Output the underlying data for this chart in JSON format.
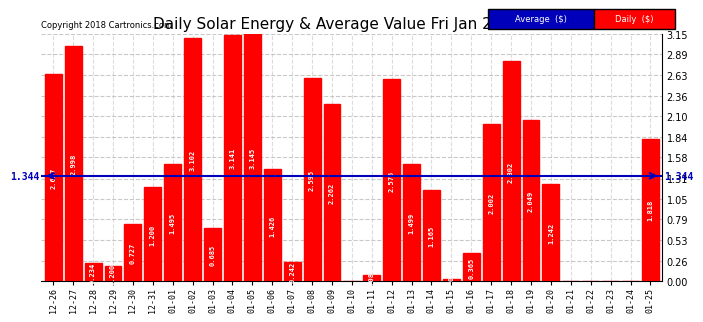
{
  "title": "Daily Solar Energy & Average Value Fri Jan 26 16:50",
  "copyright": "Copyright 2018 Cartronics.com",
  "categories": [
    "12-26",
    "12-27",
    "12-28",
    "12-29",
    "12-30",
    "12-31",
    "01-01",
    "01-02",
    "01-03",
    "01-04",
    "01-05",
    "01-06",
    "01-07",
    "01-08",
    "01-09",
    "01-10",
    "01-11",
    "01-12",
    "01-13",
    "01-14",
    "01-15",
    "01-16",
    "01-17",
    "01-18",
    "01-19",
    "01-20",
    "01-21",
    "01-22",
    "01-23",
    "01-24",
    "01-25"
  ],
  "values": [
    2.637,
    2.998,
    0.234,
    0.2,
    0.727,
    1.2,
    1.495,
    3.102,
    0.685,
    3.141,
    3.145,
    1.426,
    0.242,
    2.595,
    2.262,
    0.0,
    0.088,
    2.575,
    1.499,
    1.165,
    0.03,
    0.365,
    2.002,
    2.802,
    2.049,
    1.242,
    0.0,
    0.0,
    0.0,
    0.0,
    1.818
  ],
  "average_line": 1.344,
  "average_label": "1.344",
  "bar_color": "#FF0000",
  "average_color": "#0000BB",
  "ylim": [
    0.0,
    3.15
  ],
  "yticks": [
    0.0,
    0.26,
    0.53,
    0.79,
    1.05,
    1.31,
    1.58,
    1.84,
    2.1,
    2.36,
    2.63,
    2.89,
    3.15
  ],
  "title_fontsize": 11,
  "value_label_fontsize": 5,
  "legend_avg_color": "#0000BB",
  "legend_daily_color": "#FF0000",
  "background_color": "#FFFFFF",
  "grid_color": "#BBBBBB"
}
